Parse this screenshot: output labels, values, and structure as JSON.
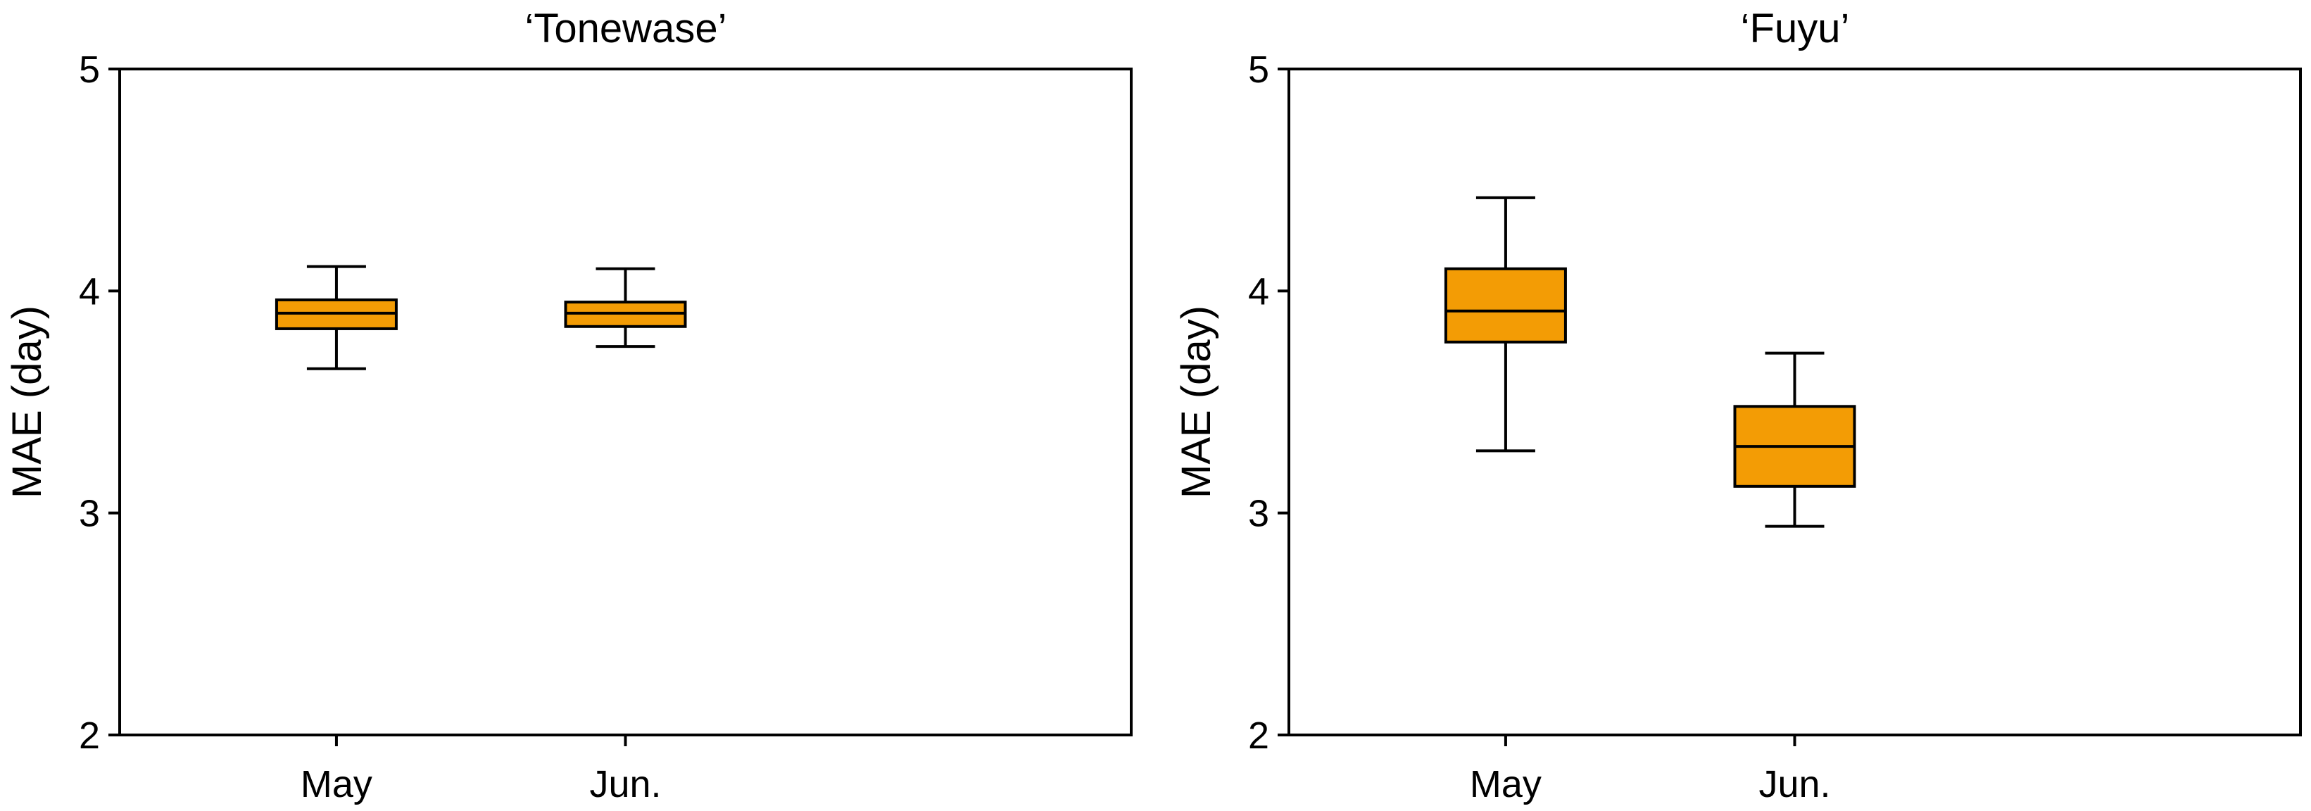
{
  "chart_data": [
    {
      "type": "box",
      "title": "‘Tonewase’",
      "xlabel": "",
      "ylabel": "MAE (day)",
      "ylim": [
        2,
        5
      ],
      "yticks": [
        "2",
        "3",
        "4",
        "5"
      ],
      "categories": [
        "May",
        "Jun."
      ],
      "box_color": "#F39C05",
      "boxes": [
        {
          "category": "May",
          "whisker_low": 3.65,
          "q1": 3.83,
          "median": 3.9,
          "q3": 3.96,
          "whisker_high": 4.11
        },
        {
          "category": "Jun.",
          "whisker_low": 3.75,
          "q1": 3.84,
          "median": 3.9,
          "q3": 3.95,
          "whisker_high": 4.1
        }
      ]
    },
    {
      "type": "box",
      "title": "‘Fuyu’",
      "xlabel": "",
      "ylabel": "MAE (day)",
      "ylim": [
        2,
        5
      ],
      "yticks": [
        "2",
        "3",
        "4",
        "5"
      ],
      "categories": [
        "May",
        "Jun."
      ],
      "box_color": "#F39C05",
      "boxes": [
        {
          "category": "May",
          "whisker_low": 3.28,
          "q1": 3.77,
          "median": 3.91,
          "q3": 4.1,
          "whisker_high": 4.42
        },
        {
          "category": "Jun.",
          "whisker_low": 2.94,
          "q1": 3.12,
          "median": 3.3,
          "q3": 3.48,
          "whisker_high": 3.72
        }
      ]
    }
  ]
}
